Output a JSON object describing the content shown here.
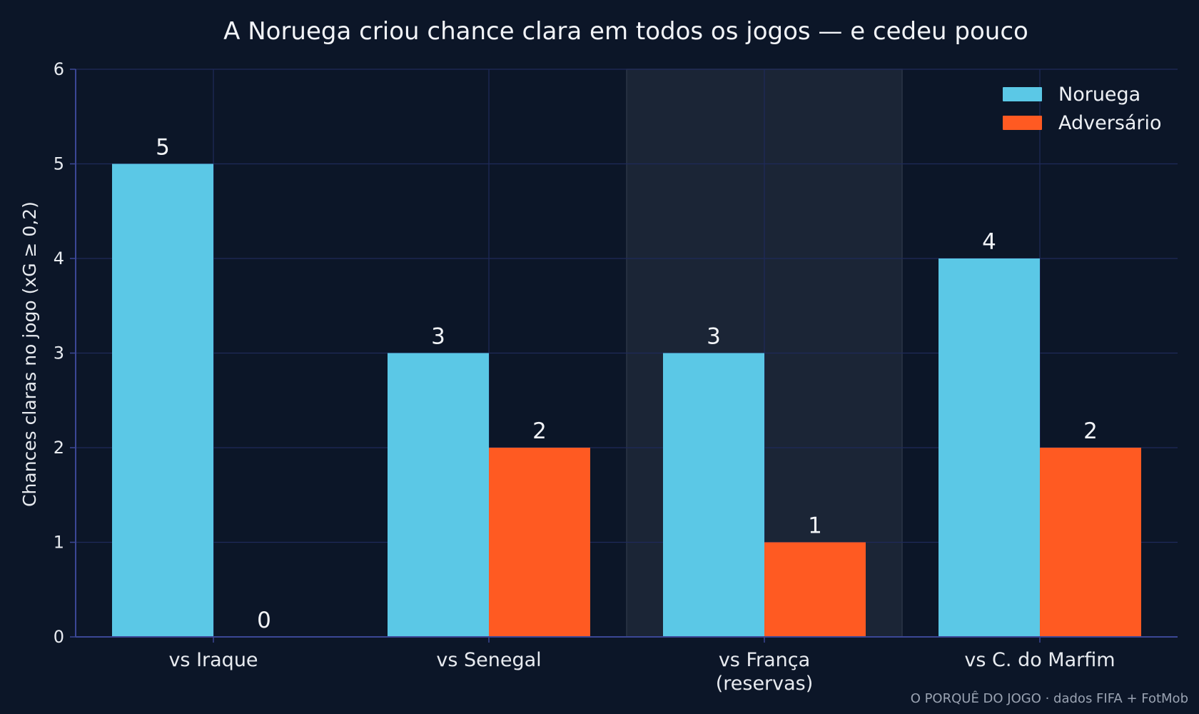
{
  "chart_data": {
    "type": "bar",
    "title": "A Noruega criou chance clara em todos os jogos — e cedeu pouco",
    "ylabel": "Chances claras no jogo (xG ≥ 0,2)",
    "xlabel": "",
    "ylim": [
      0,
      6
    ],
    "yticks": [
      0,
      1,
      2,
      3,
      4,
      5,
      6
    ],
    "grid": true,
    "legend_position": "top-right",
    "categories": [
      [
        "vs Iraque"
      ],
      [
        "vs Senegal"
      ],
      [
        "vs França",
        "(reservas)"
      ],
      [
        "vs C. do Marfim"
      ]
    ],
    "highlighted_category_index": 2,
    "series": [
      {
        "name": "Noruega",
        "color": "#5bc8e6",
        "values": [
          5,
          3,
          3,
          4
        ]
      },
      {
        "name": "Adversário",
        "color": "#ff5a22",
        "values": [
          0,
          2,
          1,
          2
        ]
      }
    ],
    "source_note": "O PORQUÊ DO JOGO · dados FIFA + FotMob"
  },
  "colors": {
    "background": "#0c1628",
    "grid": "#1f2a5a",
    "axis": "#3b4796",
    "highlight_band": "#1b2536",
    "text": "#e8ebf0"
  }
}
